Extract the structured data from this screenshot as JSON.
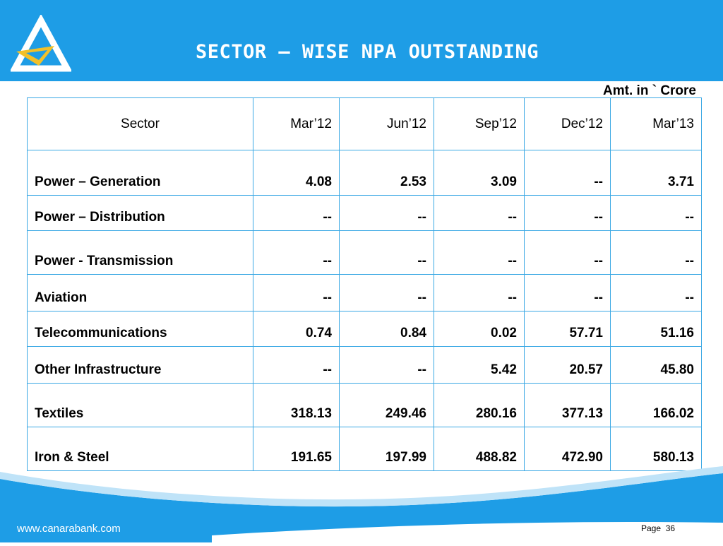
{
  "slide": {
    "title": "SECTOR – WISE NPA OUTSTANDING",
    "unit": "Amt. in ` Crore",
    "brand_color": "#1e9de6",
    "logo_color": "#f2c029"
  },
  "table": {
    "header": [
      "Sector",
      "Mar’12",
      "Jun’12",
      "Sep’12",
      "Dec’12",
      "Mar’13"
    ],
    "rows": [
      [
        "Power – Generation",
        "4.08",
        "2.53",
        "3.09",
        "--",
        "3.71"
      ],
      [
        "Power – Distribution",
        "--",
        "--",
        "--",
        "--",
        "--"
      ],
      [
        "Power -  Transmission",
        "--",
        "--",
        "--",
        "--",
        "--"
      ],
      [
        "Aviation",
        "--",
        "--",
        "--",
        "--",
        "--"
      ],
      [
        "Telecommunications",
        "0.74",
        "0.84",
        "0.02",
        "57.71",
        "51.16"
      ],
      [
        "Other Infrastructure",
        "--",
        "--",
        "5.42",
        "20.57",
        "45.80"
      ],
      [
        "Textiles",
        "318.13",
        "249.46",
        "280.16",
        "377.13",
        "166.02"
      ],
      [
        "Iron & Steel",
        "191.65",
        "197.99",
        "488.82",
        "472.90",
        "580.13"
      ]
    ]
  },
  "footer": {
    "url": "www.canarabank.com",
    "page_label": "Page",
    "page_number": "36"
  }
}
